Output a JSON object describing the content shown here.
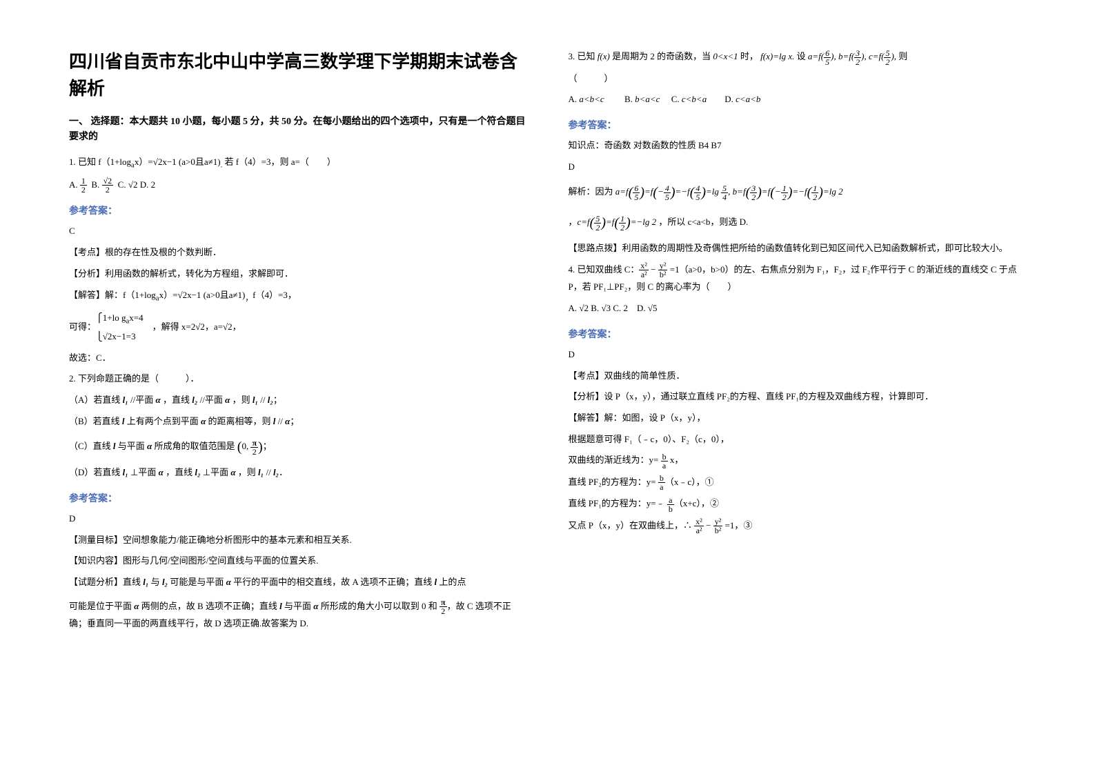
{
  "left": {
    "title": "四川省自贡市东北中山中学高三数学理下学期期末试卷含解析",
    "section1_header": "一、 选择题：本大题共 10 小题，每小题 5 分，共 50 分。在每小题给出的四个选项中，只有是一个符合题目要求的",
    "q1_line1": "1. 已知 f（1+logₐx）=√2x−1 (a>0且a≠1)， 若 f（4）=3，则 a=（　　）",
    "q1_options": "A.  ½  B.  √2/2  C. √2 D. 2",
    "answer_label": "参考答案：",
    "q1_ans": "C",
    "q1_kaopoint": "【考点】根的存在性及根的个数判断．",
    "q1_fenxi": "【分析】利用函数的解析式，转化为方程组，求解即可．",
    "q1_jieda1": "【解答】解：f（1+logₐx）=√2x−1 (a>0且a≠1)，f（4）=3，",
    "q1_jieda2": "可得：⎧1+logₐx=4  ⎩√2x−1=3 ，解得 x=2√2，a=√2，",
    "q1_jieda3": "故选：C．",
    "q2_stem": "2. 下列命题正确的是（　　　）．",
    "q2_a": "（A）若直线 l₁ //平面 α ，直线 l₂ //平面 α ，则 l₁ // l₂；",
    "q2_b": "（B）若直线 l 上有两个点到平面 α 的距离相等，则 l // α；",
    "q2_c": "（C）直线 l 与平面 α 所成角的取值范围是 (0, π/2)；",
    "q2_d": "（D）若直线 l₁ ⊥平面 α ，直线 l₂ ⊥平面 α ，则 l₁ // l₂．",
    "q2_ans": "D",
    "q2_celiang": "【测量目标】空间想象能力/能正确地分析图形中的基本元素和相互关系.",
    "q2_zhishi": "【知识内容】图形与几何/空间图形/空间直线与平面的位置关系.",
    "q2_fenxi1": "【试题分析】直线 l₁ 与 l₂ 可能是与平面 α 平行的平面中的相交直线，故 A 选项不正确；直线 l 上的点",
    "q2_fenxi2": "可能是位于平面 α 两侧的点，故 B 选项不正确；直线 l 与平面 α 所形成的角大小可以取到 0 和 π/2，故 C 选项不正确；垂直同一平面的两直线平行，故 D 选项正确.故答案为 D."
  },
  "right": {
    "q3_stem": "3. 已知 f(x) 是周期为 2 的奇函数，当 0<x<1 时， f(x)=lg x. 设 a=f(6/5), b=f(3/2), c=f(5/2), 则",
    "q3_paren": "（　　　）",
    "q3_options": "A. a<b<c        B. b<a<c     C. c<b<a        D. c<a<b",
    "q3_zhishi": "知识点：奇函数 对数函数的性质 B4 B7",
    "q3_ans": "D",
    "q3_jiexi1": "解析：因为 a=f(6/5)=f(−4/5)=−f(4/5)=lg 5/4, b=f(3/2)=f(−1/2)=−f(1/2)=lg 2",
    "q3_jiexi2": "，c=f(5/2)=f(1/2)=−lg 2 ，所以 c<a<b，则选 D.",
    "q3_silu": "【思路点拨】利用函数的周期性及奇偶性把所给的函数值转化到已知区间代入已知函数解析式，即可比较大小。",
    "q4_stem": "4. 已知双曲线 C：x²/a² − y²/b² =1（a>0，b>0）的左、右焦点分别为 F₁，F₂，过 F₂作平行于 C 的渐近线的直线交 C 于点 P，若 PF₁⊥PF₂，则 C 的离心率为（　　）",
    "q4_options": "A. √2 B. √3 C. 2　D. √5",
    "q4_ans": "D",
    "q4_kaopoint": "【考点】双曲线的简单性质．",
    "q4_fenxi": "【分析】设 P（x，y），通过联立直线 PF₂的方程、直线 PF₁的方程及双曲线方程，计算即可．",
    "q4_jieda1": "【解答】解：如图，设 P（x，y），",
    "q4_jieda2": "根据题意可得 F₁（﹣c，0）、F₂（c，0），",
    "q4_jieda3": "双曲线的渐近线为：y= (b/a) x，",
    "q4_jieda4": "直线 PF₂的方程为：y= (b/a)（x﹣c），①",
    "q4_jieda5": "直线 PF₁的方程为：y=﹣(a/b)（x+c），②",
    "q4_jieda6": "又点 P（x，y）在双曲线上，∴ x²/a² − y²/b² =1，③"
  },
  "colors": {
    "text": "#000000",
    "blue": "#4a6db5",
    "background": "#ffffff"
  },
  "fontsizes": {
    "title": 26,
    "section": 14,
    "body": 13
  }
}
